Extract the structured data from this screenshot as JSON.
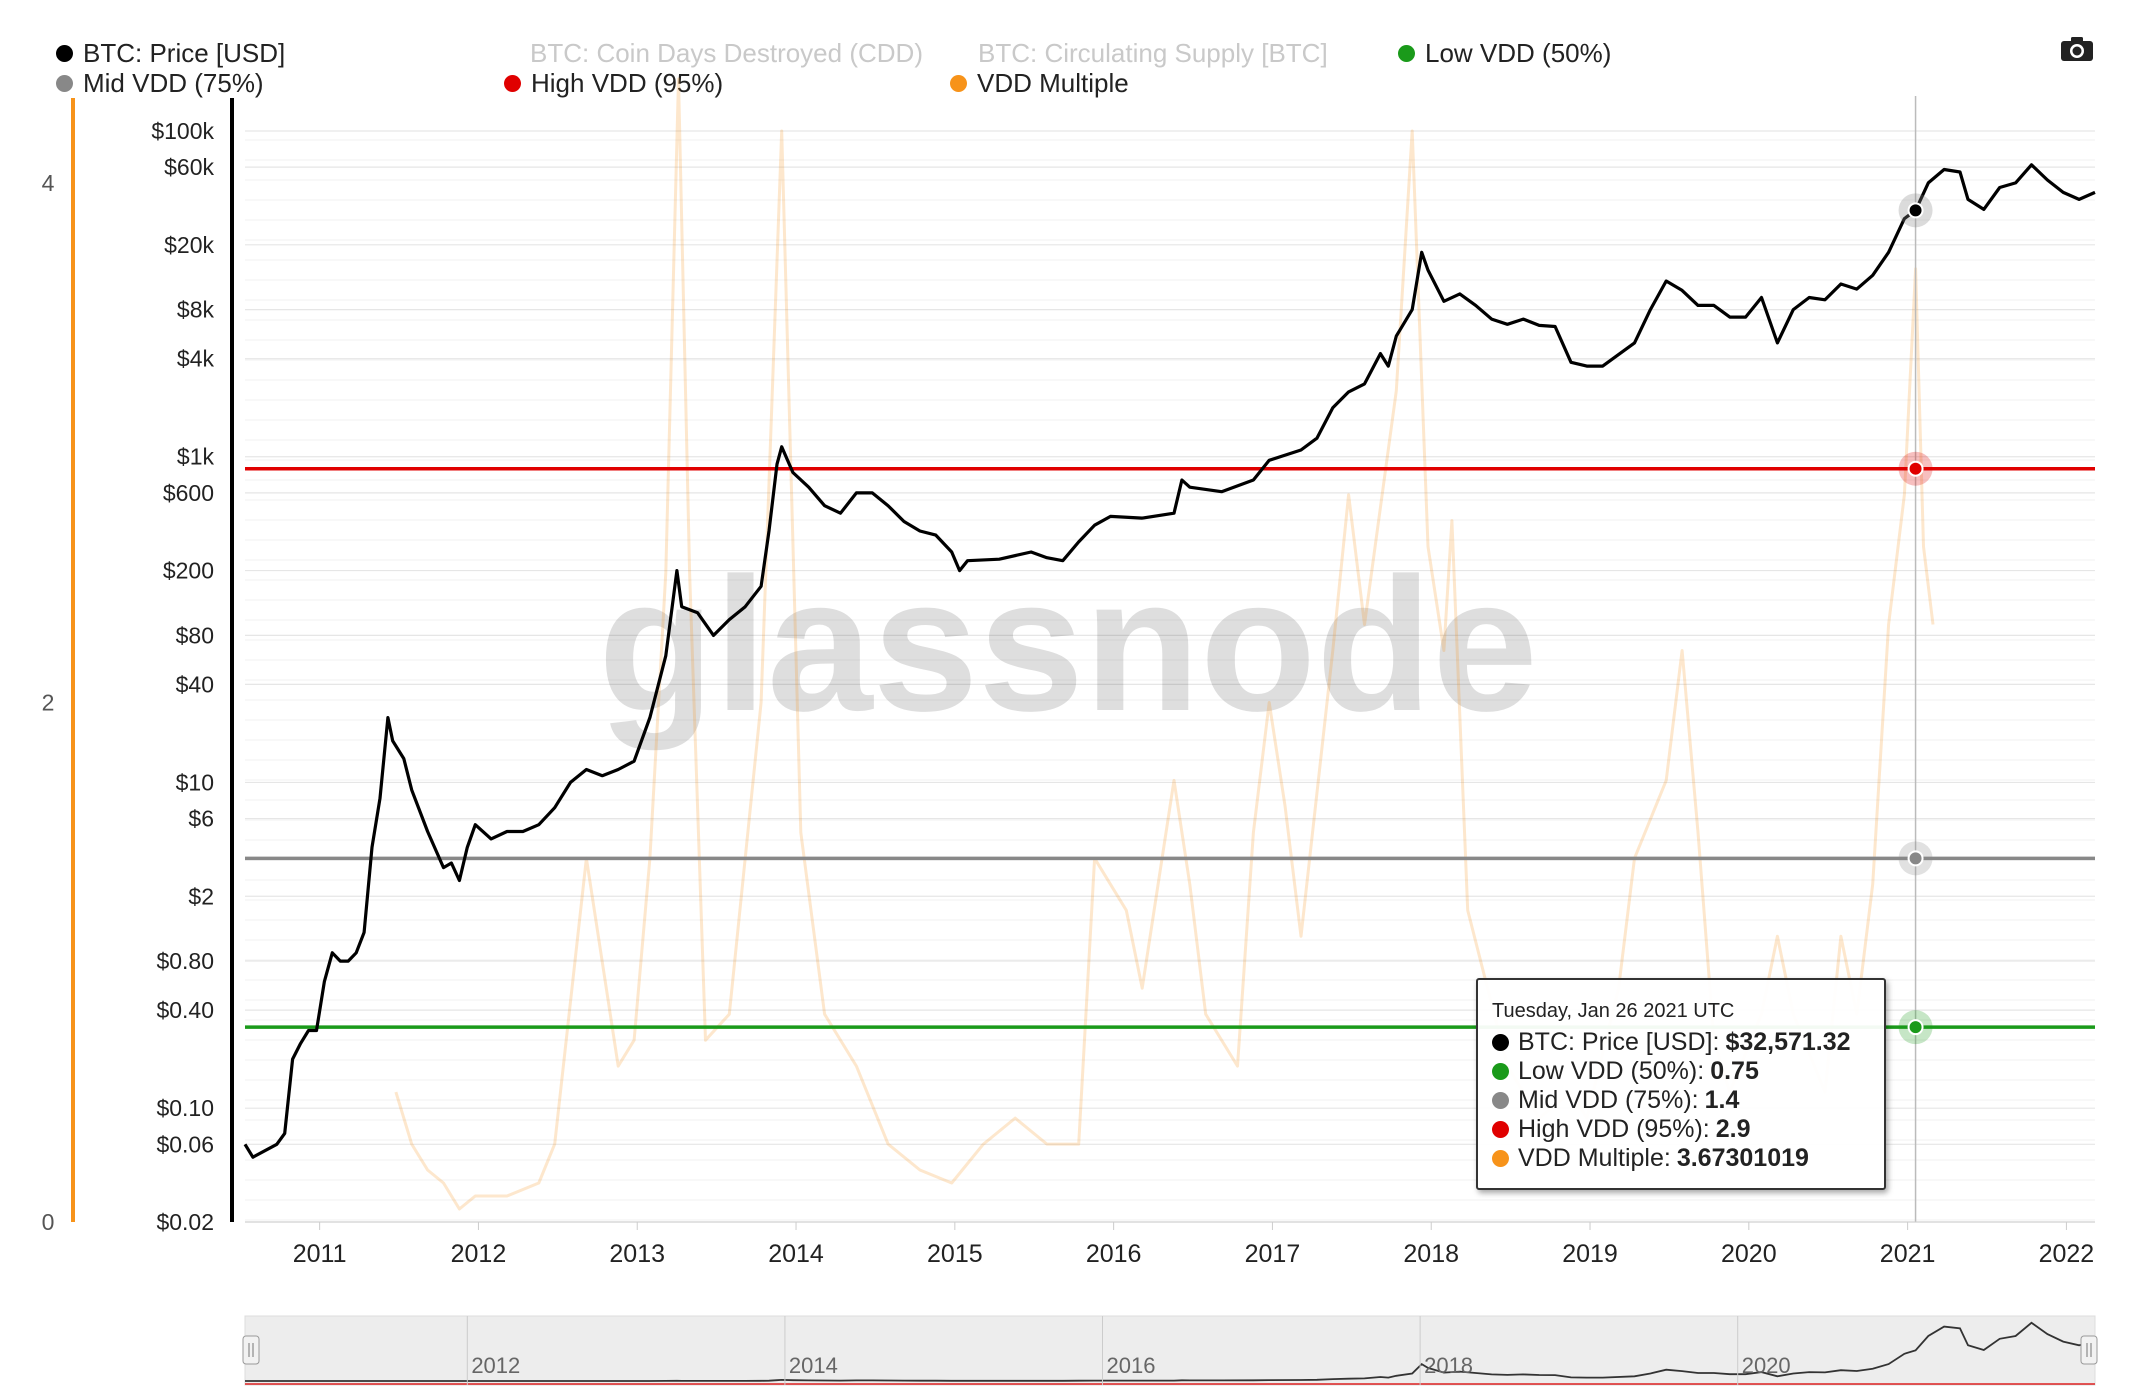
{
  "legend": [
    {
      "label": "BTC: Price [USD]",
      "color": "#000000",
      "enabled": true
    },
    {
      "label": "BTC: Coin Days Destroyed (CDD)",
      "color": "#cccccc",
      "enabled": false
    },
    {
      "label": "BTC: Circulating Supply [BTC]",
      "color": "#cccccc",
      "enabled": false
    },
    {
      "label": "Low VDD (50%)",
      "color": "#1a9a1a",
      "enabled": true
    },
    {
      "label": "Mid VDD (75%)",
      "color": "#888888",
      "enabled": true
    },
    {
      "label": "High VDD (95%)",
      "color": "#e00000",
      "enabled": true
    },
    {
      "label": "VDD Multiple",
      "color": "#f7931a",
      "enabled": true
    }
  ],
  "watermark": "glassnode",
  "icons": {
    "export": "camera-icon"
  },
  "tooltip": {
    "date": "Tuesday, Jan 26 2021 UTC",
    "rows": [
      {
        "label": "BTC: Price [USD]",
        "value": "$32,571.32",
        "color": "#000000"
      },
      {
        "label": "Low VDD (50%)",
        "value": "0.75",
        "color": "#1a9a1a"
      },
      {
        "label": "Mid VDD (75%)",
        "value": "1.4",
        "color": "#888888"
      },
      {
        "label": "High VDD (95%)",
        "value": "2.9",
        "color": "#e00000"
      },
      {
        "label": "VDD Multiple",
        "value": "3.67301019",
        "color": "#f7931a"
      }
    ]
  },
  "chart_data": {
    "type": "line",
    "x_ticks": [
      "2011",
      "2012",
      "2013",
      "2014",
      "2015",
      "2016",
      "2017",
      "2018",
      "2019",
      "2020",
      "2021",
      "2022"
    ],
    "navigator_ticks": [
      "2012",
      "2014",
      "2016",
      "2018",
      "2020"
    ],
    "y_left": {
      "ticks": [
        0,
        2,
        4
      ],
      "range": [
        0,
        4.2
      ],
      "axis_color": "#f7931a"
    },
    "y_right": {
      "scale": "log",
      "ticks": [
        {
          "v": 100000,
          "label": "$100k"
        },
        {
          "v": 60000,
          "label": "$60k"
        },
        {
          "v": 20000,
          "label": "$20k"
        },
        {
          "v": 8000,
          "label": "$8k"
        },
        {
          "v": 4000,
          "label": "$4k"
        },
        {
          "v": 1000,
          "label": "$1k"
        },
        {
          "v": 600,
          "label": "$600"
        },
        {
          "v": 200,
          "label": "$200"
        },
        {
          "v": 80,
          "label": "$80"
        },
        {
          "v": 40,
          "label": "$40"
        },
        {
          "v": 10,
          "label": "$10"
        },
        {
          "v": 6,
          "label": "$6"
        },
        {
          "v": 2,
          "label": "$2"
        },
        {
          "v": 0.8,
          "label": "$0.80"
        },
        {
          "v": 0.4,
          "label": "$0.40"
        },
        {
          "v": 0.1,
          "label": "$0.10"
        },
        {
          "v": 0.06,
          "label": "$0.06"
        },
        {
          "v": 0.02,
          "label": "$0.02"
        }
      ]
    },
    "x_range": [
      2010.55,
      2022.2
    ],
    "series": [
      {
        "name": "BTC: Price [USD]",
        "color": "#000000",
        "axis": "right",
        "points": [
          [
            2010.55,
            0.06
          ],
          [
            2010.6,
            0.05
          ],
          [
            2010.75,
            0.06
          ],
          [
            2010.8,
            0.07
          ],
          [
            2010.85,
            0.2
          ],
          [
            2010.9,
            0.25
          ],
          [
            2010.95,
            0.3
          ],
          [
            2011.0,
            0.3
          ],
          [
            2011.05,
            0.6
          ],
          [
            2011.1,
            0.9
          ],
          [
            2011.15,
            0.8
          ],
          [
            2011.2,
            0.8
          ],
          [
            2011.25,
            0.9
          ],
          [
            2011.3,
            1.2
          ],
          [
            2011.35,
            4
          ],
          [
            2011.4,
            8
          ],
          [
            2011.45,
            25
          ],
          [
            2011.48,
            18
          ],
          [
            2011.55,
            14
          ],
          [
            2011.6,
            9
          ],
          [
            2011.7,
            5
          ],
          [
            2011.8,
            3
          ],
          [
            2011.85,
            3.2
          ],
          [
            2011.9,
            2.5
          ],
          [
            2011.95,
            4
          ],
          [
            2012.0,
            5.5
          ],
          [
            2012.1,
            4.5
          ],
          [
            2012.2,
            5
          ],
          [
            2012.3,
            5
          ],
          [
            2012.4,
            5.5
          ],
          [
            2012.5,
            7
          ],
          [
            2012.6,
            10
          ],
          [
            2012.7,
            12
          ],
          [
            2012.8,
            11
          ],
          [
            2012.9,
            12
          ],
          [
            2013.0,
            13.5
          ],
          [
            2013.1,
            25
          ],
          [
            2013.2,
            60
          ],
          [
            2013.27,
            200
          ],
          [
            2013.3,
            120
          ],
          [
            2013.4,
            110
          ],
          [
            2013.5,
            80
          ],
          [
            2013.6,
            100
          ],
          [
            2013.7,
            120
          ],
          [
            2013.8,
            160
          ],
          [
            2013.85,
            350
          ],
          [
            2013.9,
            900
          ],
          [
            2013.93,
            1150
          ],
          [
            2014.0,
            800
          ],
          [
            2014.1,
            650
          ],
          [
            2014.2,
            500
          ],
          [
            2014.3,
            450
          ],
          [
            2014.4,
            600
          ],
          [
            2014.5,
            600
          ],
          [
            2014.6,
            500
          ],
          [
            2014.7,
            400
          ],
          [
            2014.8,
            350
          ],
          [
            2014.9,
            330
          ],
          [
            2015.0,
            260
          ],
          [
            2015.05,
            200
          ],
          [
            2015.1,
            230
          ],
          [
            2015.3,
            235
          ],
          [
            2015.5,
            260
          ],
          [
            2015.6,
            240
          ],
          [
            2015.7,
            230
          ],
          [
            2015.8,
            300
          ],
          [
            2015.9,
            380
          ],
          [
            2016.0,
            430
          ],
          [
            2016.2,
            420
          ],
          [
            2016.4,
            450
          ],
          [
            2016.45,
            720
          ],
          [
            2016.5,
            650
          ],
          [
            2016.7,
            610
          ],
          [
            2016.9,
            720
          ],
          [
            2017.0,
            950
          ],
          [
            2017.2,
            1100
          ],
          [
            2017.3,
            1300
          ],
          [
            2017.4,
            2000
          ],
          [
            2017.5,
            2500
          ],
          [
            2017.6,
            2800
          ],
          [
            2017.7,
            4300
          ],
          [
            2017.75,
            3600
          ],
          [
            2017.8,
            5500
          ],
          [
            2017.9,
            8000
          ],
          [
            2017.96,
            18000
          ],
          [
            2018.0,
            14000
          ],
          [
            2018.1,
            9000
          ],
          [
            2018.2,
            10000
          ],
          [
            2018.3,
            8500
          ],
          [
            2018.4,
            7000
          ],
          [
            2018.5,
            6500
          ],
          [
            2018.6,
            7000
          ],
          [
            2018.7,
            6400
          ],
          [
            2018.8,
            6300
          ],
          [
            2018.9,
            3800
          ],
          [
            2019.0,
            3600
          ],
          [
            2019.1,
            3600
          ],
          [
            2019.3,
            5000
          ],
          [
            2019.4,
            8000
          ],
          [
            2019.5,
            12000
          ],
          [
            2019.6,
            10500
          ],
          [
            2019.7,
            8500
          ],
          [
            2019.8,
            8500
          ],
          [
            2019.9,
            7200
          ],
          [
            2020.0,
            7200
          ],
          [
            2020.1,
            9500
          ],
          [
            2020.2,
            5000
          ],
          [
            2020.3,
            8000
          ],
          [
            2020.4,
            9500
          ],
          [
            2020.5,
            9200
          ],
          [
            2020.6,
            11500
          ],
          [
            2020.7,
            10700
          ],
          [
            2020.8,
            13000
          ],
          [
            2020.9,
            18000
          ],
          [
            2021.0,
            29000
          ],
          [
            2021.07,
            32571
          ],
          [
            2021.15,
            48000
          ],
          [
            2021.25,
            58000
          ],
          [
            2021.35,
            56000
          ],
          [
            2021.4,
            38000
          ],
          [
            2021.5,
            33000
          ],
          [
            2021.6,
            45000
          ],
          [
            2021.7,
            48000
          ],
          [
            2021.8,
            62000
          ],
          [
            2021.9,
            50000
          ],
          [
            2022.0,
            42000
          ],
          [
            2022.1,
            38000
          ],
          [
            2022.2,
            42000
          ]
        ]
      },
      {
        "name": "VDD Multiple",
        "color": "#f7931a",
        "axis": "left",
        "points": [
          [
            2011.5,
            0.5
          ],
          [
            2011.6,
            0.3
          ],
          [
            2011.7,
            0.2
          ],
          [
            2011.8,
            0.15
          ],
          [
            2011.9,
            0.05
          ],
          [
            2012.0,
            0.1
          ],
          [
            2012.2,
            0.1
          ],
          [
            2012.4,
            0.15
          ],
          [
            2012.5,
            0.3
          ],
          [
            2012.7,
            1.4
          ],
          [
            2012.8,
            1.0
          ],
          [
            2012.9,
            0.6
          ],
          [
            2013.0,
            0.7
          ],
          [
            2013.1,
            1.4
          ],
          [
            2013.2,
            2.5
          ],
          [
            2013.28,
            4.4
          ],
          [
            2013.35,
            2.5
          ],
          [
            2013.45,
            0.7
          ],
          [
            2013.6,
            0.8
          ],
          [
            2013.8,
            2.0
          ],
          [
            2013.93,
            4.2
          ],
          [
            2014.05,
            1.5
          ],
          [
            2014.2,
            0.8
          ],
          [
            2014.4,
            0.6
          ],
          [
            2014.6,
            0.3
          ],
          [
            2014.8,
            0.2
          ],
          [
            2015.0,
            0.15
          ],
          [
            2015.2,
            0.3
          ],
          [
            2015.4,
            0.4
          ],
          [
            2015.6,
            0.3
          ],
          [
            2015.8,
            0.3
          ],
          [
            2015.9,
            1.4
          ],
          [
            2016.1,
            1.2
          ],
          [
            2016.2,
            0.9
          ],
          [
            2016.4,
            1.7
          ],
          [
            2016.5,
            1.3
          ],
          [
            2016.6,
            0.8
          ],
          [
            2016.8,
            0.6
          ],
          [
            2016.9,
            1.5
          ],
          [
            2017.0,
            2.0
          ],
          [
            2017.1,
            1.6
          ],
          [
            2017.2,
            1.1
          ],
          [
            2017.4,
            2.2
          ],
          [
            2017.5,
            2.8
          ],
          [
            2017.6,
            2.3
          ],
          [
            2017.8,
            3.2
          ],
          [
            2017.9,
            4.2
          ],
          [
            2018.0,
            2.6
          ],
          [
            2018.1,
            2.2
          ],
          [
            2018.15,
            2.7
          ],
          [
            2018.25,
            1.2
          ],
          [
            2018.5,
            0.6
          ],
          [
            2018.7,
            0.4
          ],
          [
            2018.9,
            0.5
          ],
          [
            2019.0,
            0.4
          ],
          [
            2019.2,
            0.9
          ],
          [
            2019.3,
            1.4
          ],
          [
            2019.5,
            1.7
          ],
          [
            2019.6,
            2.2
          ],
          [
            2019.7,
            1.5
          ],
          [
            2019.8,
            0.7
          ],
          [
            2019.9,
            0.5
          ],
          [
            2020.1,
            0.8
          ],
          [
            2020.2,
            1.1
          ],
          [
            2020.3,
            0.8
          ],
          [
            2020.5,
            0.5
          ],
          [
            2020.6,
            1.1
          ],
          [
            2020.7,
            0.8
          ],
          [
            2020.8,
            1.3
          ],
          [
            2020.9,
            2.3
          ],
          [
            2021.0,
            2.8
          ],
          [
            2021.07,
            3.67
          ],
          [
            2021.12,
            2.6
          ],
          [
            2021.18,
            2.3
          ]
        ]
      }
    ],
    "hlines": [
      {
        "name": "High VDD (95%)",
        "value": 2.9,
        "color": "#e00000"
      },
      {
        "name": "Mid VDD (75%)",
        "value": 1.4,
        "color": "#888888"
      },
      {
        "name": "Low VDD (50%)",
        "value": 0.75,
        "color": "#1a9a1a"
      }
    ],
    "crosshair_x": 2021.07
  }
}
